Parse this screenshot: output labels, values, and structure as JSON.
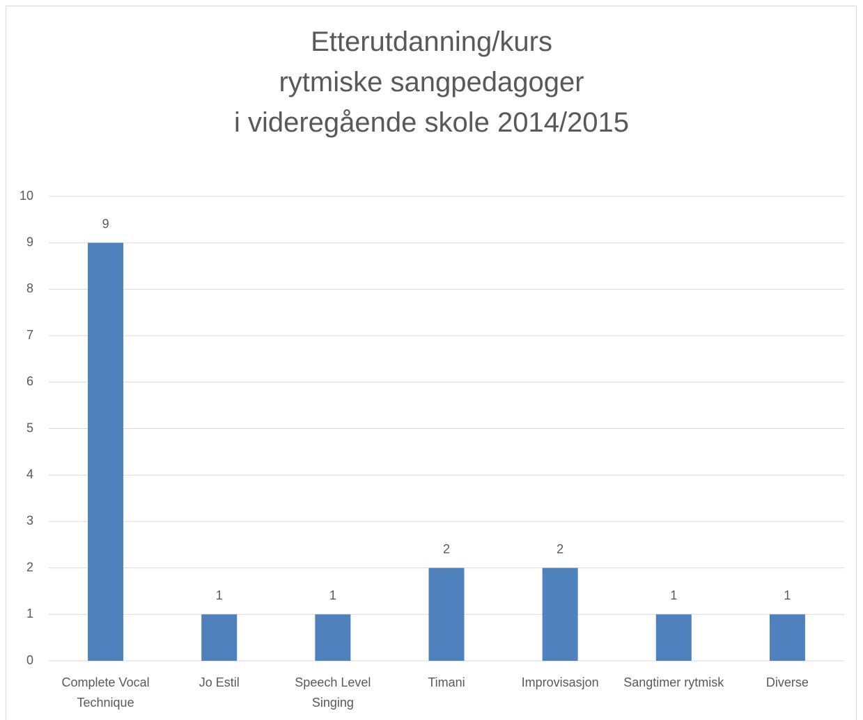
{
  "chart_data": {
    "type": "bar",
    "title": "Etterutdanning/kurs\nrytmiske sangpedagoger\ni videregående skole 2014/2015",
    "categories": [
      "Complete Vocal Technique",
      "Jo Estil",
      "Speech Level Singing",
      "Timani",
      "Improvisasjon",
      "Sangtimer rytmisk",
      "Diverse"
    ],
    "values": [
      9,
      1,
      1,
      2,
      2,
      1,
      1
    ],
    "color": "#4f81bd",
    "ylim": [
      0,
      10
    ],
    "yticks": [
      0,
      1,
      2,
      3,
      4,
      5,
      6,
      7,
      8,
      9,
      10
    ],
    "grid": true
  }
}
